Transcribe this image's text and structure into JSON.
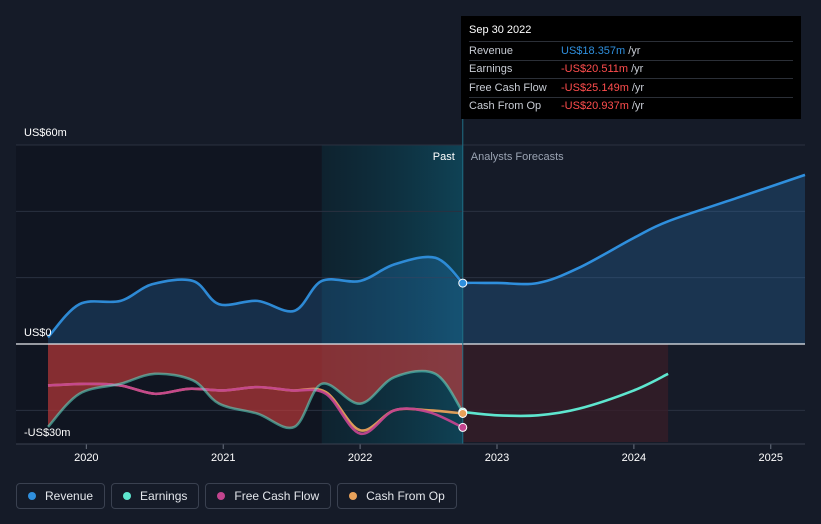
{
  "chart_data": {
    "type": "line",
    "title": "",
    "ylim": [
      -30,
      60
    ],
    "xlim": [
      2019.72,
      2025.25
    ],
    "y_tick_labels": [
      {
        "value": 60,
        "label": "US$60m"
      },
      {
        "value": 0,
        "label": "US$0"
      },
      {
        "value": -30,
        "label": "-US$30m"
      }
    ],
    "x_tick_labels": [
      {
        "value": 2020,
        "label": "2020"
      },
      {
        "value": 2021,
        "label": "2021"
      },
      {
        "value": 2022,
        "label": "2022"
      },
      {
        "value": 2023,
        "label": "2023"
      },
      {
        "value": 2024,
        "label": "2024"
      },
      {
        "value": 2025,
        "label": "2025"
      }
    ],
    "divider_x": 2022.75,
    "highlight_band": [
      2021.72,
      2022.75
    ],
    "past_label": "Past",
    "forecast_label": "Analysts Forecasts",
    "series": [
      {
        "name": "Revenue",
        "color": "#2f8fdd",
        "past": [
          [
            2019.72,
            2
          ],
          [
            2019.95,
            12
          ],
          [
            2020.25,
            13
          ],
          [
            2020.48,
            18
          ],
          [
            2020.78,
            19
          ],
          [
            2020.97,
            12
          ],
          [
            2021.25,
            13
          ],
          [
            2021.52,
            10
          ],
          [
            2021.72,
            19
          ],
          [
            2022.0,
            19
          ],
          [
            2022.25,
            24
          ],
          [
            2022.55,
            26
          ],
          [
            2022.75,
            18.357
          ]
        ],
        "forecast": [
          [
            2022.75,
            18.4
          ],
          [
            2023.0,
            18.4
          ],
          [
            2023.3,
            18.4
          ],
          [
            2023.6,
            23
          ],
          [
            2024.0,
            32
          ],
          [
            2024.25,
            37
          ],
          [
            2024.75,
            44
          ],
          [
            2025.25,
            51
          ]
        ]
      },
      {
        "name": "Earnings",
        "color": "#5ee6cf",
        "past": [
          [
            2019.72,
            -25
          ],
          [
            2019.95,
            -15
          ],
          [
            2020.25,
            -12
          ],
          [
            2020.5,
            -9
          ],
          [
            2020.78,
            -11
          ],
          [
            2020.97,
            -18
          ],
          [
            2021.25,
            -21
          ],
          [
            2021.52,
            -25
          ],
          [
            2021.72,
            -12
          ],
          [
            2022.0,
            -18
          ],
          [
            2022.25,
            -10
          ],
          [
            2022.55,
            -9
          ],
          [
            2022.75,
            -20.511
          ]
        ],
        "forecast": [
          [
            2022.75,
            -20.5
          ],
          [
            2023.0,
            -21.5
          ],
          [
            2023.3,
            -21.5
          ],
          [
            2023.6,
            -19.5
          ],
          [
            2024.0,
            -14
          ],
          [
            2024.25,
            -9
          ]
        ]
      },
      {
        "name": "Free Cash Flow",
        "color": "#c2448e",
        "past": [
          [
            2019.72,
            -12.5
          ],
          [
            2020.0,
            -12
          ],
          [
            2020.25,
            -12.5
          ],
          [
            2020.5,
            -15
          ],
          [
            2020.75,
            -13.5
          ],
          [
            2021.0,
            -14
          ],
          [
            2021.25,
            -13
          ],
          [
            2021.5,
            -14
          ],
          [
            2021.75,
            -15
          ],
          [
            2022.0,
            -27
          ],
          [
            2022.25,
            -20
          ],
          [
            2022.5,
            -20.5
          ],
          [
            2022.75,
            -25.149
          ]
        ],
        "forecast": []
      },
      {
        "name": "Cash From Op",
        "color": "#e8a15a",
        "past": [
          [
            2019.72,
            -12.5
          ],
          [
            2020.0,
            -12
          ],
          [
            2020.25,
            -12.5
          ],
          [
            2020.5,
            -15
          ],
          [
            2020.75,
            -13.5
          ],
          [
            2021.0,
            -14
          ],
          [
            2021.25,
            -13
          ],
          [
            2021.5,
            -14
          ],
          [
            2021.75,
            -14.5
          ],
          [
            2022.0,
            -26
          ],
          [
            2022.25,
            -20
          ],
          [
            2022.5,
            -20
          ],
          [
            2022.75,
            -20.937
          ]
        ],
        "forecast": []
      }
    ]
  },
  "tooltip": {
    "date": "Sep 30 2022",
    "unit": "/yr",
    "rows": [
      {
        "label": "Revenue",
        "value": "US$18.357m",
        "color": "#2f8fdd"
      },
      {
        "label": "Earnings",
        "value": "-US$20.511m",
        "color": "#ff4d4d"
      },
      {
        "label": "Free Cash Flow",
        "value": "-US$25.149m",
        "color": "#ff4d4d"
      },
      {
        "label": "Cash From Op",
        "value": "-US$20.937m",
        "color": "#ff4d4d"
      }
    ]
  },
  "legend": [
    {
      "label": "Revenue",
      "color": "#2f8fdd"
    },
    {
      "label": "Earnings",
      "color": "#5ee6cf"
    },
    {
      "label": "Free Cash Flow",
      "color": "#c2448e"
    },
    {
      "label": "Cash From Op",
      "color": "#e8a15a"
    }
  ]
}
